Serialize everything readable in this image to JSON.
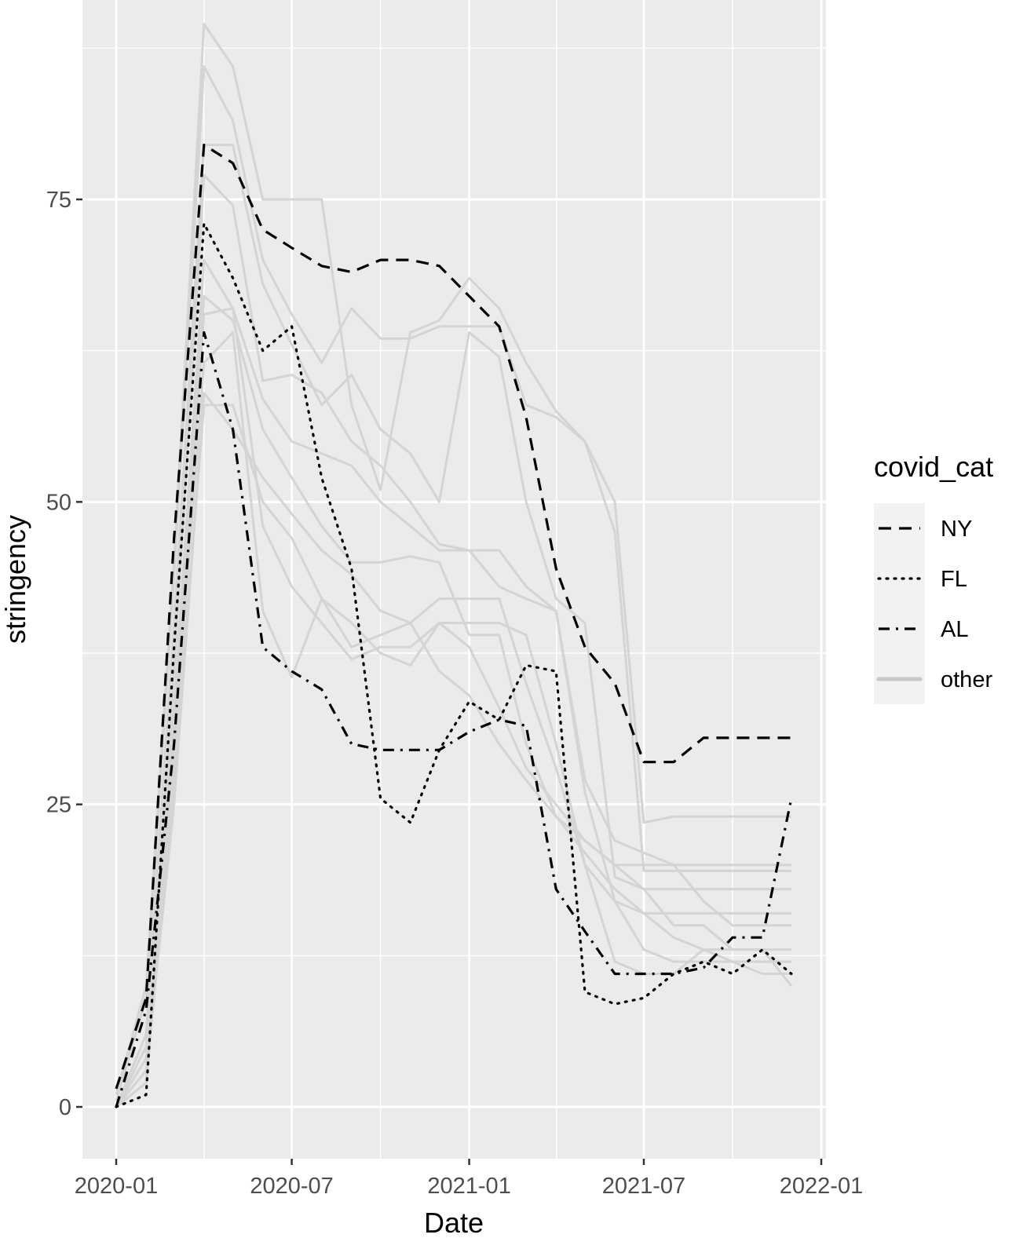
{
  "chart_data": {
    "type": "line",
    "title": "",
    "xlabel": "Date",
    "ylabel": "stringency",
    "x_ticks": [
      "2020-01",
      "2020-07",
      "2021-01",
      "2021-07",
      "2022-01"
    ],
    "y_ticks": [
      0,
      25,
      50,
      75
    ],
    "xlim": [
      "2019-12-01",
      "2022-01-01"
    ],
    "ylim": [
      -3.5,
      91.5
    ],
    "grid": true,
    "legend": {
      "title": "covid_cat",
      "position": "right",
      "entries": [
        "NY",
        "FL",
        "AL",
        "other"
      ]
    },
    "series": [
      {
        "name": "NY",
        "style": "dashed",
        "color": "#000000",
        "x": [
          "2020-01",
          "2020-02",
          "2020-03",
          "2020-04",
          "2020-05",
          "2020-06",
          "2020-07",
          "2020-08",
          "2020-09",
          "2020-10",
          "2020-11",
          "2020-12",
          "2021-01",
          "2021-02",
          "2021-03",
          "2021-04",
          "2021-05",
          "2021-06",
          "2021-07",
          "2021-08",
          "2021-09",
          "2021-10",
          "2021-11",
          "2021-12"
        ],
        "y": [
          1.5,
          9,
          47,
          79.5,
          78,
          72.5,
          71,
          69.5,
          69,
          70,
          70,
          69.5,
          67,
          64.5,
          57,
          44.5,
          38,
          35,
          28.5,
          28.5,
          30.5,
          30.5,
          30.5,
          30.5
        ]
      },
      {
        "name": "FL",
        "style": "dotted",
        "color": "#000000",
        "x": [
          "2020-01",
          "2020-02",
          "2020-03",
          "2020-04",
          "2020-05",
          "2020-06",
          "2020-07",
          "2020-08",
          "2020-09",
          "2020-10",
          "2020-11",
          "2020-12",
          "2021-01",
          "2021-02",
          "2021-03",
          "2021-04",
          "2021-05",
          "2021-06",
          "2021-07",
          "2021-08",
          "2021-09",
          "2021-10",
          "2021-11",
          "2021-12"
        ],
        "y": [
          0,
          1,
          38,
          73,
          68.5,
          62.5,
          64.5,
          52,
          44.5,
          25.5,
          23.5,
          29.5,
          33.5,
          32,
          36.5,
          36,
          9.5,
          8.5,
          9,
          11,
          12,
          11,
          13,
          11
        ]
      },
      {
        "name": "AL",
        "style": "dashdot",
        "color": "#000000",
        "x": [
          "2020-01",
          "2020-02",
          "2020-03",
          "2020-04",
          "2020-05",
          "2020-06",
          "2020-07",
          "2020-08",
          "2020-09",
          "2020-10",
          "2020-11",
          "2020-12",
          "2021-01",
          "2021-02",
          "2021-03",
          "2021-04",
          "2021-05",
          "2021-06",
          "2021-07",
          "2021-08",
          "2021-09",
          "2021-10",
          "2021-11",
          "2021-12"
        ],
        "y": [
          0,
          8,
          30,
          64,
          56,
          38,
          36,
          34.5,
          30,
          29.5,
          29.5,
          29.5,
          31,
          32,
          31.5,
          18,
          14.5,
          11,
          11,
          11,
          11.5,
          14,
          14,
          25.5
        ]
      },
      {
        "name": "other",
        "color": "#d4d4d4",
        "values": [
          {
            "x": [
              "2020-01",
              "2020-02",
              "2020-03",
              "2020-04",
              "2020-05",
              "2020-06",
              "2020-07",
              "2020-08",
              "2020-09",
              "2020-10",
              "2020-11",
              "2020-12",
              "2021-01",
              "2021-02",
              "2021-03",
              "2021-04",
              "2021-05",
              "2021-06",
              "2021-07",
              "2021-08",
              "2021-09",
              "2021-10",
              "2021-11",
              "2021-12"
            ],
            "y": [
              1,
              10,
              45,
              89.5,
              86,
              75,
              75,
              75,
              58,
              51,
              64,
              65,
              68.5,
              66,
              61.5,
              57.5,
              55,
              50,
              23.5,
              24,
              24,
              24,
              24,
              24
            ]
          },
          {
            "x": [
              "2020-01",
              "2020-02",
              "2020-03",
              "2020-04",
              "2020-05",
              "2020-06",
              "2020-07",
              "2020-08",
              "2020-09",
              "2020-10",
              "2020-11",
              "2020-12",
              "2021-01",
              "2021-02",
              "2021-03",
              "2021-04",
              "2021-05",
              "2021-06",
              "2021-07",
              "2021-08",
              "2021-09",
              "2021-10",
              "2021-11",
              "2021-12"
            ],
            "y": [
              0.5,
              9,
              44,
              86,
              81.5,
              70,
              65.5,
              61.5,
              66,
              63.5,
              63.5,
              64.5,
              64.5,
              64.5,
              58,
              57,
              55,
              47.5,
              19.5,
              19.5,
              19.5,
              19.5,
              19.5,
              19.5
            ]
          },
          {
            "x": [
              "2020-01",
              "2020-02",
              "2020-03",
              "2020-04",
              "2020-05",
              "2020-06",
              "2020-07",
              "2020-08",
              "2020-09",
              "2020-10",
              "2020-11",
              "2020-12",
              "2021-01",
              "2021-02",
              "2021-03",
              "2021-04",
              "2021-05",
              "2021-06",
              "2021-07",
              "2021-08",
              "2021-09",
              "2021-10",
              "2021-11",
              "2021-12"
            ],
            "y": [
              0,
              6,
              40,
              79.5,
              79.5,
              68,
              63,
              58,
              60.5,
              56,
              54,
              50,
              64,
              62,
              50,
              42,
              40,
              19,
              18,
              18,
              18,
              18,
              18,
              18
            ]
          },
          {
            "x": [
              "2020-01",
              "2020-02",
              "2020-03",
              "2020-04",
              "2020-05",
              "2020-06",
              "2020-07",
              "2020-08",
              "2020-09",
              "2020-10",
              "2020-11",
              "2020-12",
              "2021-01",
              "2021-02",
              "2021-03",
              "2021-04",
              "2021-05",
              "2021-06",
              "2021-07",
              "2021-08",
              "2021-09",
              "2021-10",
              "2021-11",
              "2021-12"
            ],
            "y": [
              0,
              4,
              36,
              77,
              74.5,
              60,
              60.5,
              59,
              55,
              53,
              50,
              46.5,
              46,
              46,
              43,
              41,
              27,
              22,
              21,
              20,
              17,
              15,
              15,
              15
            ]
          },
          {
            "x": [
              "2020-01",
              "2020-02",
              "2020-03",
              "2020-04",
              "2020-05",
              "2020-06",
              "2020-07",
              "2020-08",
              "2020-09",
              "2020-10",
              "2020-11",
              "2020-12",
              "2021-01",
              "2021-02",
              "2021-03",
              "2021-04",
              "2021-05",
              "2021-06",
              "2021-07",
              "2021-08",
              "2021-09",
              "2021-10",
              "2021-11",
              "2021-12"
            ],
            "y": [
              0,
              5,
              33,
              70,
              66,
              58.5,
              55,
              54,
              53,
              50,
              48,
              46,
              46,
              43,
              42,
              41,
              26,
              17,
              16,
              16,
              16,
              16,
              16,
              16
            ]
          },
          {
            "x": [
              "2020-01",
              "2020-02",
              "2020-03",
              "2020-04",
              "2020-05",
              "2020-06",
              "2020-07",
              "2020-08",
              "2020-09",
              "2020-10",
              "2020-11",
              "2020-12",
              "2021-01",
              "2021-02",
              "2021-03",
              "2021-04",
              "2021-05",
              "2021-06",
              "2021-07",
              "2021-08",
              "2021-09",
              "2021-10",
              "2021-11",
              "2021-12"
            ],
            "y": [
              0,
              3,
              31,
              67,
              65,
              56,
              52,
              48,
              45,
              45,
              45.5,
              45,
              39,
              39,
              30,
              24,
              22,
              20,
              20,
              20,
              20,
              20,
              20,
              20
            ]
          },
          {
            "x": [
              "2020-01",
              "2020-02",
              "2020-03",
              "2020-04",
              "2020-05",
              "2020-06",
              "2020-07",
              "2020-08",
              "2020-09",
              "2020-10",
              "2020-11",
              "2020-12",
              "2021-01",
              "2021-02",
              "2021-03",
              "2021-04",
              "2021-05",
              "2021-06",
              "2021-07",
              "2021-08",
              "2021-09",
              "2021-10",
              "2021-11",
              "2021-12"
            ],
            "y": [
              0,
              2,
              30,
              65.5,
              66,
              48,
              43,
              40,
              37,
              38,
              38,
              40,
              40,
              40,
              39,
              30,
              20,
              12,
              11,
              11,
              13,
              13,
              13,
              13
            ]
          },
          {
            "x": [
              "2020-01",
              "2020-02",
              "2020-03",
              "2020-04",
              "2020-05",
              "2020-06",
              "2020-07",
              "2020-08",
              "2020-09",
              "2020-10",
              "2020-11",
              "2020-12",
              "2021-01",
              "2021-02",
              "2021-03",
              "2021-04",
              "2021-05",
              "2021-06",
              "2021-07",
              "2021-08",
              "2021-09",
              "2021-10",
              "2021-11",
              "2021-12"
            ],
            "y": [
              0,
              4,
              29,
              61.5,
              64,
              41,
              35.5,
              42,
              38,
              39,
              40,
              42,
              42,
              42,
              35,
              28,
              20,
              17,
              13,
              12,
              12,
              12,
              12,
              12
            ]
          },
          {
            "x": [
              "2020-01",
              "2020-02",
              "2020-03",
              "2020-04",
              "2020-05",
              "2020-06",
              "2020-07",
              "2020-08",
              "2020-09",
              "2020-10",
              "2020-11",
              "2020-12",
              "2021-01",
              "2021-02",
              "2021-03",
              "2021-04",
              "2021-05",
              "2021-06",
              "2021-07",
              "2021-08",
              "2021-09",
              "2021-10",
              "2021-11",
              "2021-12"
            ],
            "y": [
              0,
              2,
              27,
              58,
              58,
              50,
              47,
              42,
              40,
              37.5,
              36.5,
              40,
              38,
              33,
              28,
              25,
              22,
              20,
              18,
              15,
              15,
              13,
              13,
              10
            ]
          },
          {
            "x": [
              "2020-01",
              "2020-02",
              "2020-03",
              "2020-04",
              "2020-05",
              "2020-06",
              "2020-07",
              "2020-08",
              "2020-09",
              "2020-10",
              "2020-11",
              "2020-12",
              "2021-01",
              "2021-02",
              "2021-03",
              "2021-04",
              "2021-05",
              "2021-06",
              "2021-07",
              "2021-08",
              "2021-09",
              "2021-10",
              "2021-11",
              "2021-12"
            ],
            "y": [
              0,
              3,
              25,
              59,
              56,
              52,
              49,
              46,
              44,
              41,
              40,
              36,
              34,
              30,
              27,
              24,
              21,
              18,
              16,
              14,
              13,
              12,
              11,
              11
            ]
          }
        ]
      }
    ]
  }
}
